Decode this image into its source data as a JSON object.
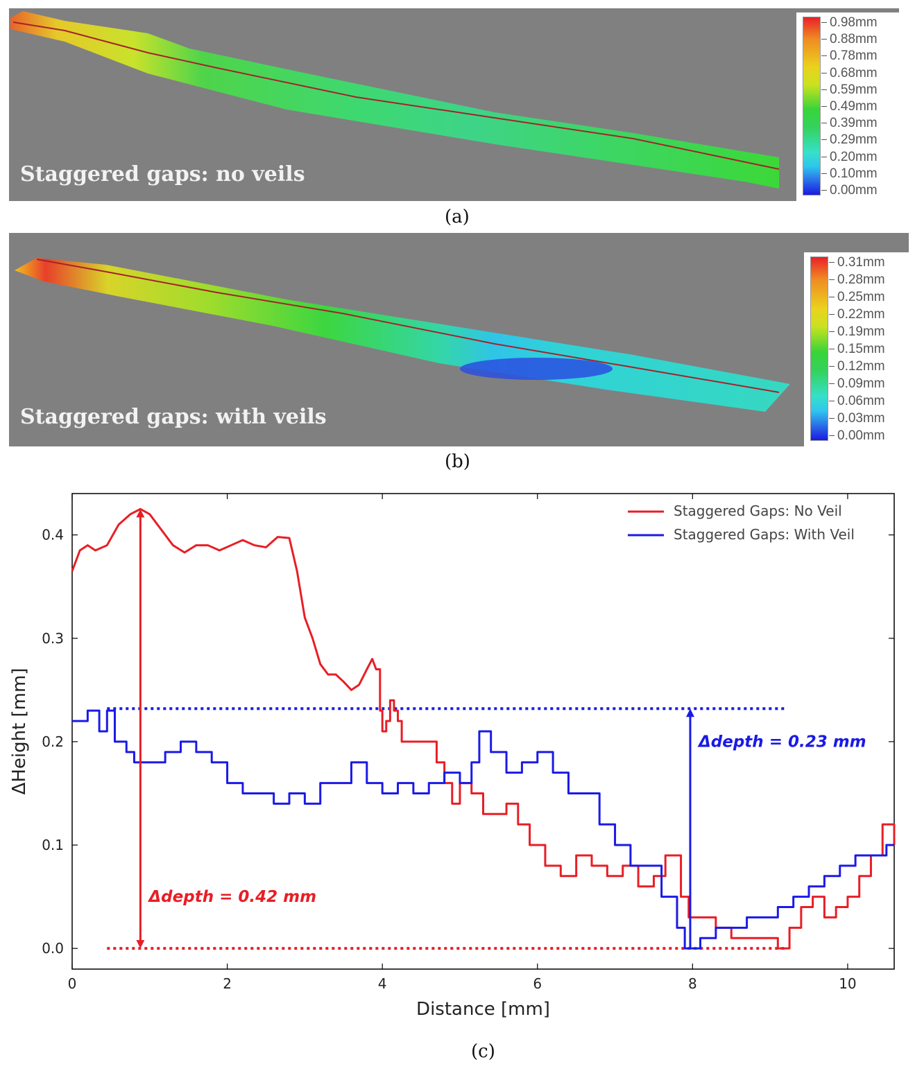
{
  "panel_a": {
    "label": "Staggered gaps: no veils",
    "colorbar": [
      "0.98mm",
      "0.88mm",
      "0.78mm",
      "0.68mm",
      "0.59mm",
      "0.49mm",
      "0.39mm",
      "0.29mm",
      "0.20mm",
      "0.10mm",
      "0.00mm"
    ],
    "sublabel": "(a)"
  },
  "panel_b": {
    "label": "Staggered gaps: with veils",
    "colorbar": [
      "0.31mm",
      "0.28mm",
      "0.25mm",
      "0.22mm",
      "0.19mm",
      "0.15mm",
      "0.12mm",
      "0.09mm",
      "0.06mm",
      "0.03mm",
      "0.00mm"
    ],
    "sublabel": "(b)"
  },
  "panel_c": {
    "sublabel": "(c)"
  },
  "chart_data": {
    "type": "line",
    "xlabel": "Distance [mm]",
    "ylabel": "ΔHeight [mm]",
    "xlim": [
      0,
      10.6
    ],
    "ylim": [
      -0.02,
      0.44
    ],
    "xticks": [
      0,
      2,
      4,
      6,
      8,
      10
    ],
    "yticks": [
      0.0,
      0.1,
      0.2,
      0.3,
      0.4
    ],
    "legend_position": "top-right",
    "colors": {
      "no_veil": "#e81e25",
      "with_veil": "#1a1ae6"
    },
    "series": [
      {
        "name": "Staggered Gaps: No Veil",
        "x": [
          0,
          0.1,
          0.2,
          0.3,
          0.45,
          0.6,
          0.75,
          0.88,
          1.0,
          1.15,
          1.3,
          1.45,
          1.6,
          1.75,
          1.9,
          2.05,
          2.2,
          2.35,
          2.5,
          2.65,
          2.8,
          2.9,
          3.0,
          3.1,
          3.2,
          3.3,
          3.4,
          3.5,
          3.6,
          3.7,
          3.8,
          3.87,
          3.92,
          3.97,
          4.0,
          4.05,
          4.1,
          4.15,
          4.2,
          4.25,
          4.35,
          4.5,
          4.7,
          4.8,
          4.9,
          5.0,
          5.15,
          5.3,
          5.45,
          5.6,
          5.75,
          5.9,
          6.1,
          6.3,
          6.5,
          6.7,
          6.9,
          7.1,
          7.3,
          7.5,
          7.65,
          7.75,
          7.85,
          7.95,
          8.1,
          8.3,
          8.5,
          8.7,
          8.9,
          9.1,
          9.25,
          9.4,
          9.55,
          9.7,
          9.85,
          10.0,
          10.15,
          10.3,
          10.45,
          10.6
        ],
        "y": [
          0.365,
          0.385,
          0.39,
          0.385,
          0.39,
          0.41,
          0.42,
          0.425,
          0.42,
          0.405,
          0.39,
          0.383,
          0.39,
          0.39,
          0.385,
          0.39,
          0.395,
          0.39,
          0.388,
          0.398,
          0.397,
          0.365,
          0.32,
          0.3,
          0.275,
          0.265,
          0.265,
          0.258,
          0.25,
          0.255,
          0.27,
          0.28,
          0.27,
          0.23,
          0.21,
          0.22,
          0.24,
          0.23,
          0.22,
          0.2,
          0.2,
          0.2,
          0.18,
          0.16,
          0.14,
          0.16,
          0.15,
          0.13,
          0.13,
          0.14,
          0.12,
          0.1,
          0.08,
          0.07,
          0.09,
          0.08,
          0.07,
          0.08,
          0.06,
          0.07,
          0.09,
          0.09,
          0.05,
          0.03,
          0.03,
          0.02,
          0.01,
          0.01,
          0.01,
          0.0,
          0.02,
          0.04,
          0.05,
          0.03,
          0.04,
          0.05,
          0.07,
          0.09,
          0.12,
          0.1
        ]
      },
      {
        "name": "Staggered Gaps: With Veil",
        "x": [
          0,
          0.2,
          0.35,
          0.45,
          0.55,
          0.7,
          0.8,
          1.0,
          1.2,
          1.4,
          1.6,
          1.8,
          2.0,
          2.2,
          2.4,
          2.6,
          2.8,
          3.0,
          3.2,
          3.4,
          3.6,
          3.8,
          4.0,
          4.2,
          4.4,
          4.6,
          4.8,
          5.0,
          5.15,
          5.25,
          5.4,
          5.6,
          5.8,
          6.0,
          6.2,
          6.4,
          6.6,
          6.8,
          7.0,
          7.2,
          7.4,
          7.6,
          7.8,
          7.9,
          8.0,
          8.1,
          8.3,
          8.5,
          8.7,
          8.9,
          9.1,
          9.3,
          9.5,
          9.7,
          9.9,
          10.1,
          10.3,
          10.5,
          10.6
        ],
        "y": [
          0.22,
          0.23,
          0.21,
          0.23,
          0.2,
          0.19,
          0.18,
          0.18,
          0.19,
          0.2,
          0.19,
          0.18,
          0.16,
          0.15,
          0.15,
          0.14,
          0.15,
          0.14,
          0.16,
          0.16,
          0.18,
          0.16,
          0.15,
          0.16,
          0.15,
          0.16,
          0.17,
          0.16,
          0.18,
          0.21,
          0.19,
          0.17,
          0.18,
          0.19,
          0.17,
          0.15,
          0.15,
          0.12,
          0.1,
          0.08,
          0.08,
          0.05,
          0.02,
          0.0,
          0.0,
          0.01,
          0.02,
          0.02,
          0.03,
          0.03,
          0.04,
          0.05,
          0.06,
          0.07,
          0.08,
          0.09,
          0.09,
          0.1,
          0.1
        ]
      }
    ],
    "reference_lines": [
      {
        "y": 0.232,
        "x_range": [
          0.45,
          9.2
        ],
        "color": "#1a1ae6",
        "style": "dotted"
      },
      {
        "y": 0.0,
        "x_range": [
          0.45,
          9.2
        ],
        "color": "#e81e25",
        "style": "dotted"
      }
    ],
    "annotations": [
      {
        "text": "Δdepth = 0.42 mm",
        "arrow_x": 0.88,
        "y_from": 0.0,
        "y_to": 0.425,
        "color": "#e81e25",
        "double_headed": true
      },
      {
        "text": "Δdepth = 0.23 mm",
        "arrow_x": 7.97,
        "y_from": 0.0,
        "y_to": 0.232,
        "color": "#1a1ae6",
        "double_headed": false
      }
    ]
  }
}
